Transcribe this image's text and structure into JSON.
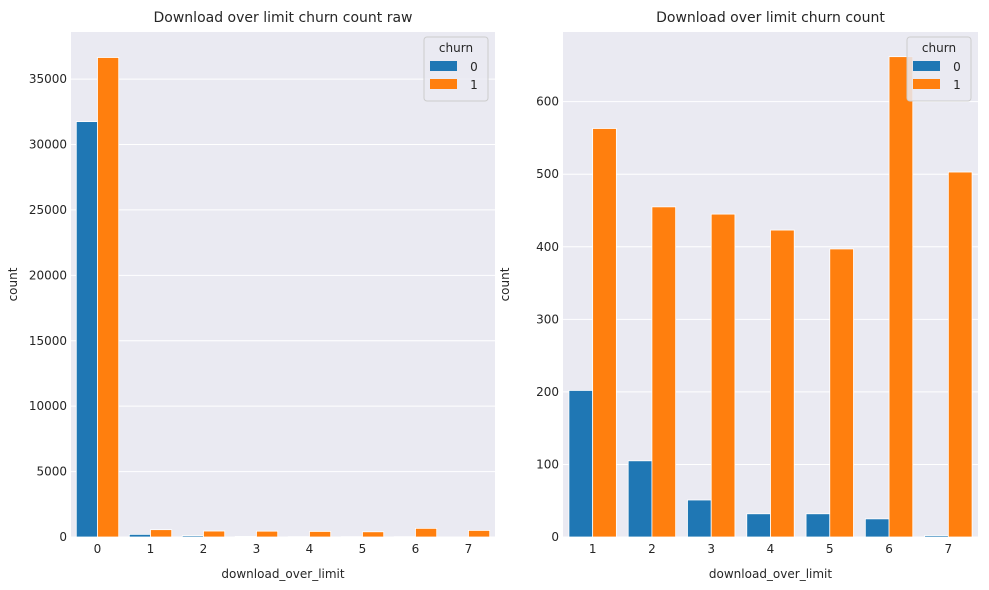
{
  "chart_data": [
    {
      "type": "bar",
      "title": "Download over limit churn count raw",
      "xlabel": "download_over_limit",
      "ylabel": "count",
      "categories": [
        "0",
        "1",
        "2",
        "3",
        "4",
        "5",
        "6",
        "7"
      ],
      "series": [
        {
          "name": "0",
          "values": [
            31750,
            200,
            100,
            45,
            30,
            30,
            25,
            2
          ],
          "color": "#1f77b4"
        },
        {
          "name": "1",
          "values": [
            36650,
            560,
            455,
            445,
            425,
            398,
            660,
            502
          ],
          "color": "#ff7f0e"
        }
      ],
      "ylim": [
        0,
        38600
      ],
      "yticks": [
        0,
        5000,
        10000,
        15000,
        20000,
        25000,
        30000,
        35000
      ],
      "legend": {
        "title": "churn",
        "placement": "top-right"
      },
      "grid": true,
      "style": "seaborn-darkgrid"
    },
    {
      "type": "bar",
      "title": "Download over limit churn count",
      "xlabel": "download_over_limit",
      "ylabel": "count",
      "categories": [
        "1",
        "2",
        "3",
        "4",
        "5",
        "6",
        "7"
      ],
      "series": [
        {
          "name": "0",
          "values": [
            202,
            105,
            51,
            32,
            32,
            25,
            2
          ],
          "color": "#1f77b4"
        },
        {
          "name": "1",
          "values": [
            563,
            455,
            445,
            423,
            397,
            662,
            503
          ],
          "color": "#ff7f0e"
        }
      ],
      "ylim": [
        0,
        696
      ],
      "yticks": [
        0,
        100,
        200,
        300,
        400,
        500,
        600
      ],
      "legend": {
        "title": "churn",
        "placement": "top-right"
      },
      "grid": true,
      "style": "seaborn-darkgrid"
    }
  ]
}
